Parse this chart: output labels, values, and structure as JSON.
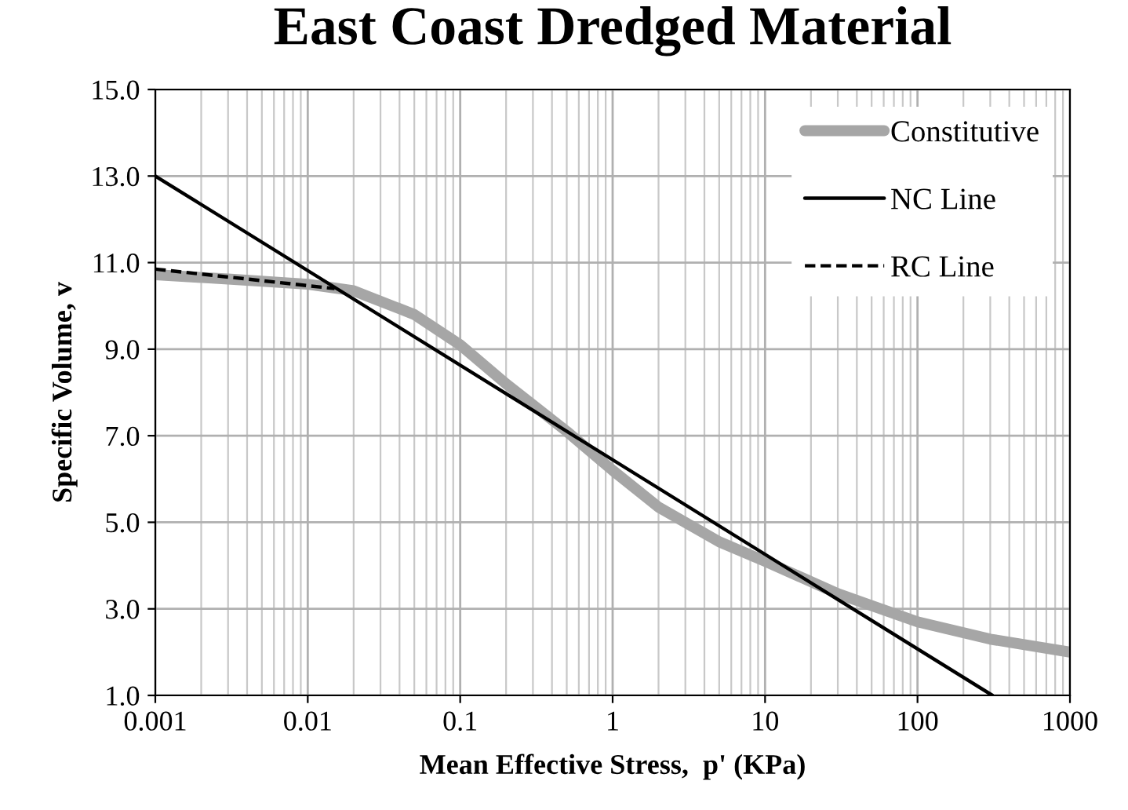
{
  "chart_data": {
    "type": "line",
    "title": "East Coast Dredged Material",
    "xlabel": "Mean Effective Stress,  p' (KPa)",
    "ylabel": "Specific Volume, v",
    "log": "x",
    "grid": true,
    "legend": "top right",
    "xlim": [
      0.001,
      1000
    ],
    "xticks": [
      0.001,
      0.01,
      0.1,
      1,
      10,
      100,
      1000
    ],
    "ylim": [
      1.0,
      15.0
    ],
    "yticks": [
      {
        "value": 1,
        "label": "1.0"
      },
      {
        "value": 3,
        "label": "3.0"
      },
      {
        "value": 5,
        "label": "5.0"
      },
      {
        "value": 7,
        "label": "7.0"
      },
      {
        "value": 9,
        "label": "9.0"
      },
      {
        "value": 11,
        "label": "11.0"
      },
      {
        "value": 13,
        "label": "13.0"
      },
      {
        "value": 15,
        "label": "15.0"
      }
    ],
    "series": [
      {
        "name": "Constitutive",
        "color": "#a6a6a6",
        "line_style": "solid",
        "x": [
          0.001,
          0.003,
          0.01,
          0.02,
          0.05,
          0.1,
          0.2,
          0.5,
          1,
          2,
          5,
          10,
          30,
          100,
          300,
          1000
        ],
        "values": [
          10.72,
          10.62,
          10.5,
          10.35,
          9.8,
          9.1,
          8.2,
          7.1,
          6.2,
          5.35,
          4.55,
          4.1,
          3.35,
          2.7,
          2.3,
          2.0
        ]
      },
      {
        "name": "NC Line",
        "color": "#000000",
        "line_style": "solid",
        "x": [
          0.001,
          310
        ],
        "values": [
          13.0,
          1.0
        ]
      },
      {
        "name": "RC Line",
        "color": "#000000",
        "line_style": "dashed",
        "x": [
          0.001,
          0.015
        ],
        "values": [
          10.85,
          10.4
        ]
      }
    ]
  }
}
